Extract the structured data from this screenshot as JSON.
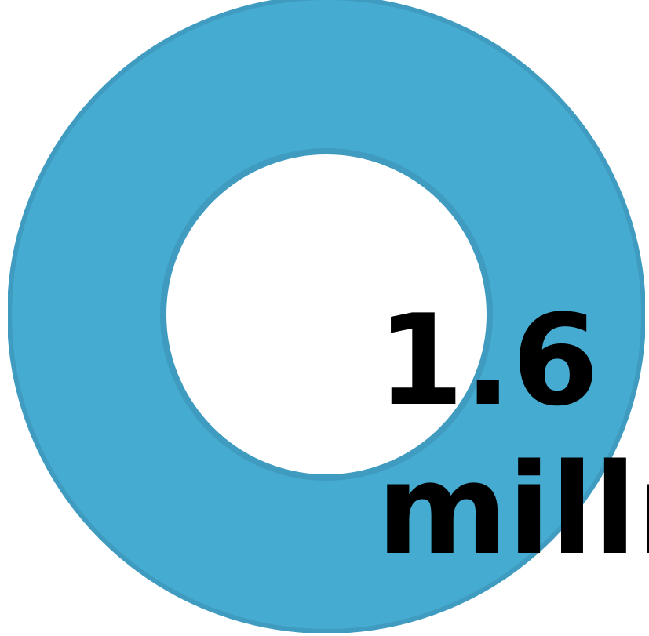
{
  "infographic": {
    "behind_left_text_top": "",
    "behind_left_text_bottom": "",
    "stat_value": "1.6",
    "stat_unit": "millı",
    "stat_extra": ""
  },
  "colors": {
    "ring_fill": "#45abd0",
    "ring_outline": "#3f9cc0",
    "text": "#000000",
    "background": "#ffffff"
  }
}
